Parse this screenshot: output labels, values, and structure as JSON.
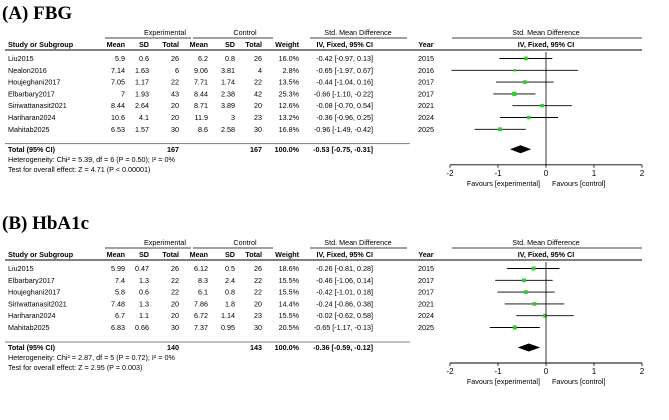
{
  "figure": {
    "panels": [
      {
        "title": "(A)  FBG",
        "group_headers": {
          "experimental": "Experimental",
          "control": "Control",
          "smd_text": "Std. Mean Difference",
          "smd_plot": "Std. Mean Difference"
        },
        "columns": {
          "study": "Study or Subgroup",
          "mean1": "Mean",
          "sd1": "SD",
          "total1": "Total",
          "mean2": "Mean",
          "sd2": "SD",
          "total2": "Total",
          "weight": "Weight",
          "ci": "IV, Fixed, 95% CI",
          "year": "Year",
          "plot": "IV, Fixed, 95% CI"
        },
        "studies": [
          {
            "name": "Liu2015",
            "m1": "5.9",
            "sd1": "0.6",
            "n1": "26",
            "m2": "6.2",
            "sd2": "0.8",
            "n2": "26",
            "weight": "16.0%",
            "ci": "-0.42 [-0.97, 0.13]",
            "year": "2015"
          },
          {
            "name": "Nealon2016",
            "m1": "7.14",
            "sd1": "1.63",
            "n1": "6",
            "m2": "9.06",
            "sd2": "3.81",
            "n2": "4",
            "weight": "2.8%",
            "ci": "-0.65 [-1.97, 0.67]",
            "year": "2016"
          },
          {
            "name": "Houjeghani2017",
            "m1": "7.05",
            "sd1": "1.17",
            "n1": "22",
            "m2": "7.71",
            "sd2": "1.74",
            "n2": "22",
            "weight": "13.5%",
            "ci": "-0.44 [-1.04, 0.16]",
            "year": "2017"
          },
          {
            "name": "Elbarbary2017",
            "m1": "7",
            "sd1": "1.93",
            "n1": "43",
            "m2": "8.44",
            "sd2": "2.38",
            "n2": "42",
            "weight": "25.3%",
            "ci": "-0.66 [-1.10, -0.22]",
            "year": "2017"
          },
          {
            "name": "Siriwattanasit2021",
            "m1": "8.44",
            "sd1": "2.64",
            "n1": "20",
            "m2": "8.71",
            "sd2": "3.89",
            "n2": "20",
            "weight": "12.6%",
            "ci": "-0.08 [-0.70, 0.54]",
            "year": "2021"
          },
          {
            "name": "Hariharan2024",
            "m1": "10.6",
            "sd1": "4.1",
            "n1": "20",
            "m2": "11.9",
            "sd2": "3",
            "n2": "23",
            "weight": "13.2%",
            "ci": "-0.36 [-0.96, 0.25]",
            "year": "2024"
          },
          {
            "name": "Mahitab2025",
            "m1": "6.53",
            "sd1": "1.57",
            "n1": "30",
            "m2": "8.6",
            "sd2": "2.58",
            "n2": "30",
            "weight": "16.8%",
            "ci": "-0.96 [-1.49, -0.42]",
            "year": "2025"
          }
        ],
        "total": {
          "label": "Total (95% CI)",
          "n1": "167",
          "n2": "167",
          "weight": "100.0%",
          "ci": "-0.53 [-0.75, -0.31]"
        },
        "heterogeneity": "Heterogeneity: Chi² = 5.39, df = 6 (P = 0.50); I² = 0%",
        "overall_effect": "Test for overall effect: Z = 4.71 (P < 0.00001)",
        "favours_left": "Favours [experimental]",
        "favours_right": "Favours [control]"
      },
      {
        "title": "(B)  HbA1c",
        "group_headers": {
          "experimental": "Experimental",
          "control": "Control",
          "smd_text": "Std. Mean Difference",
          "smd_plot": "Std. Mean Difference"
        },
        "columns": {
          "study": "Study or Subgroup",
          "mean1": "Mean",
          "sd1": "SD",
          "total1": "Total",
          "mean2": "Mean",
          "sd2": "SD",
          "total2": "Total",
          "weight": "Weight",
          "ci": "IV, Fixed, 95% CI",
          "year": "Year",
          "plot": "IV, Fixed, 95% CI"
        },
        "studies": [
          {
            "name": "Liu2015",
            "m1": "5.99",
            "sd1": "0.47",
            "n1": "26",
            "m2": "6.12",
            "sd2": "0.5",
            "n2": "26",
            "weight": "18.6%",
            "ci": "-0.26 [-0.81, 0.28]",
            "year": "2015"
          },
          {
            "name": "Elbarbary2017",
            "m1": "7.4",
            "sd1": "1.3",
            "n1": "22",
            "m2": "8.3",
            "sd2": "2.4",
            "n2": "22",
            "weight": "15.5%",
            "ci": "-0.46 [-1.06, 0.14]",
            "year": "2017"
          },
          {
            "name": "Houjeghani2017",
            "m1": "5.8",
            "sd1": "0.6",
            "n1": "22",
            "m2": "6.1",
            "sd2": "0.8",
            "n2": "22",
            "weight": "15.5%",
            "ci": "-0.42 [-1.01, 0.18]",
            "year": "2017"
          },
          {
            "name": "Siriwattanasit2021",
            "m1": "7.48",
            "sd1": "1.3",
            "n1": "20",
            "m2": "7.86",
            "sd2": "1.8",
            "n2": "20",
            "weight": "14.4%",
            "ci": "-0.24 [-0.86, 0.38]",
            "year": "2021"
          },
          {
            "name": "Hariharan2024",
            "m1": "6.7",
            "sd1": "1.1",
            "n1": "20",
            "m2": "6.72",
            "sd2": "1.14",
            "n2": "23",
            "weight": "15.5%",
            "ci": "-0.02 [-0.62, 0.58]",
            "year": "2024"
          },
          {
            "name": "Mahitab2025",
            "m1": "6.83",
            "sd1": "0.66",
            "n1": "30",
            "m2": "7.37",
            "sd2": "0.95",
            "n2": "30",
            "weight": "20.5%",
            "ci": "-0.65 [-1.17, -0.13]",
            "year": "2025"
          }
        ],
        "total": {
          "label": "Total (95% CI)",
          "n1": "140",
          "n2": "143",
          "weight": "100.0%",
          "ci": "-0.36 [-0.59, -0.12]"
        },
        "heterogeneity": "Heterogeneity: Chi² = 2.87, df = 5 (P = 0.72); I² = 0%",
        "overall_effect": "Test for overall effect: Z = 2.95 (P = 0.003)",
        "favours_left": "Favours [experimental]",
        "favours_right": "Favours [control]"
      }
    ]
  },
  "chart_data": [
    {
      "type": "forest",
      "title": "(A)  FBG",
      "xlabel": "Std. Mean Difference IV, Fixed, 95% CI",
      "xlim": [
        -2,
        2
      ],
      "xticks": [
        "-2",
        "-1",
        "0",
        "1",
        "2"
      ],
      "studies": [
        {
          "name": "Liu2015",
          "est": -0.42,
          "lo": -0.97,
          "hi": 0.13,
          "weight": 16.0
        },
        {
          "name": "Nealon2016",
          "est": -0.65,
          "lo": -1.97,
          "hi": 0.67,
          "weight": 2.8
        },
        {
          "name": "Houjeghani2017",
          "est": -0.44,
          "lo": -1.04,
          "hi": 0.16,
          "weight": 13.5
        },
        {
          "name": "Elbarbary2017",
          "est": -0.66,
          "lo": -1.1,
          "hi": -0.22,
          "weight": 25.3
        },
        {
          "name": "Siriwattanasit2021",
          "est": -0.08,
          "lo": -0.7,
          "hi": 0.54,
          "weight": 12.6
        },
        {
          "name": "Hariharan2024",
          "est": -0.36,
          "lo": -0.96,
          "hi": 0.25,
          "weight": 13.2
        },
        {
          "name": "Mahitab2025",
          "est": -0.96,
          "lo": -1.49,
          "hi": -0.42,
          "weight": 16.8
        }
      ],
      "pooled": {
        "est": -0.53,
        "lo": -0.75,
        "hi": -0.31
      }
    },
    {
      "type": "forest",
      "title": "(B)  HbA1c",
      "xlabel": "Std. Mean Difference IV, Fixed, 95% CI",
      "xlim": [
        -2,
        2
      ],
      "xticks": [
        "-2",
        "-1",
        "0",
        "1",
        "2"
      ],
      "studies": [
        {
          "name": "Liu2015",
          "est": -0.26,
          "lo": -0.81,
          "hi": 0.28,
          "weight": 18.6
        },
        {
          "name": "Elbarbary2017",
          "est": -0.46,
          "lo": -1.06,
          "hi": 0.14,
          "weight": 15.5
        },
        {
          "name": "Houjeghani2017",
          "est": -0.42,
          "lo": -1.01,
          "hi": 0.18,
          "weight": 15.5
        },
        {
          "name": "Siriwattanasit2021",
          "est": -0.24,
          "lo": -0.86,
          "hi": 0.38,
          "weight": 14.4
        },
        {
          "name": "Hariharan2024",
          "est": -0.02,
          "lo": -0.62,
          "hi": 0.58,
          "weight": 15.5
        },
        {
          "name": "Mahitab2025",
          "est": -0.65,
          "lo": -1.17,
          "hi": -0.13,
          "weight": 20.5
        }
      ],
      "pooled": {
        "est": -0.36,
        "lo": -0.59,
        "hi": -0.12
      }
    }
  ],
  "colors": {
    "marker": "#33cc33",
    "line": "#000000",
    "pooled": "#000000"
  }
}
